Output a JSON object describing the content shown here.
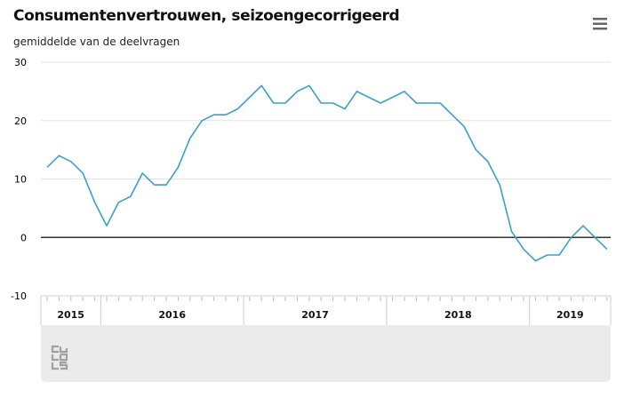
{
  "title": "Consumentenvertrouwen, seizoengecorrigeerd",
  "subtitle": "gemiddelde van de deelvragen",
  "menu_icon": "hamburger-menu-icon",
  "logo_icon": "cbs-logo-icon",
  "colors": {
    "line": "#3d9fc9",
    "zero_line": "#333333",
    "grid": "#e3e3e3",
    "footer_bg": "#ebebeb"
  },
  "chart_data": {
    "type": "line",
    "title": "Consumentenvertrouwen, seizoengecorrigeerd",
    "subtitle": "gemiddelde van de deelvragen",
    "xlabel": "",
    "ylabel": "",
    "ylim": [
      -10,
      30
    ],
    "yticks": [
      -10,
      0,
      10,
      20,
      30
    ],
    "grid": true,
    "x_start": "2015-08",
    "x_end": "2019-07",
    "years": [
      "2015",
      "2016",
      "2017",
      "2018",
      "2019"
    ],
    "series": [
      {
        "name": "",
        "x": [
          "2015-08",
          "2015-09",
          "2015-10",
          "2015-11",
          "2015-12",
          "2016-01",
          "2016-02",
          "2016-03",
          "2016-04",
          "2016-05",
          "2016-06",
          "2016-07",
          "2016-08",
          "2016-09",
          "2016-10",
          "2016-11",
          "2016-12",
          "2017-01",
          "2017-02",
          "2017-03",
          "2017-04",
          "2017-05",
          "2017-06",
          "2017-07",
          "2017-08",
          "2017-09",
          "2017-10",
          "2017-11",
          "2017-12",
          "2018-01",
          "2018-02",
          "2018-03",
          "2018-04",
          "2018-05",
          "2018-06",
          "2018-07",
          "2018-08",
          "2018-09",
          "2018-10",
          "2018-11",
          "2018-12",
          "2019-01",
          "2019-02",
          "2019-03",
          "2019-04",
          "2019-05",
          "2019-06",
          "2019-07"
        ],
        "values": [
          12,
          14,
          13,
          11,
          6,
          2,
          6,
          7,
          11,
          9,
          9,
          12,
          17,
          20,
          21,
          21,
          22,
          24,
          26,
          23,
          23,
          25,
          26,
          23,
          23,
          22,
          25,
          24,
          23,
          24,
          25,
          23,
          23,
          23,
          21,
          19,
          15,
          13,
          9,
          1,
          -2,
          -4,
          -3,
          -3,
          0,
          2,
          0,
          -2
        ]
      }
    ]
  }
}
